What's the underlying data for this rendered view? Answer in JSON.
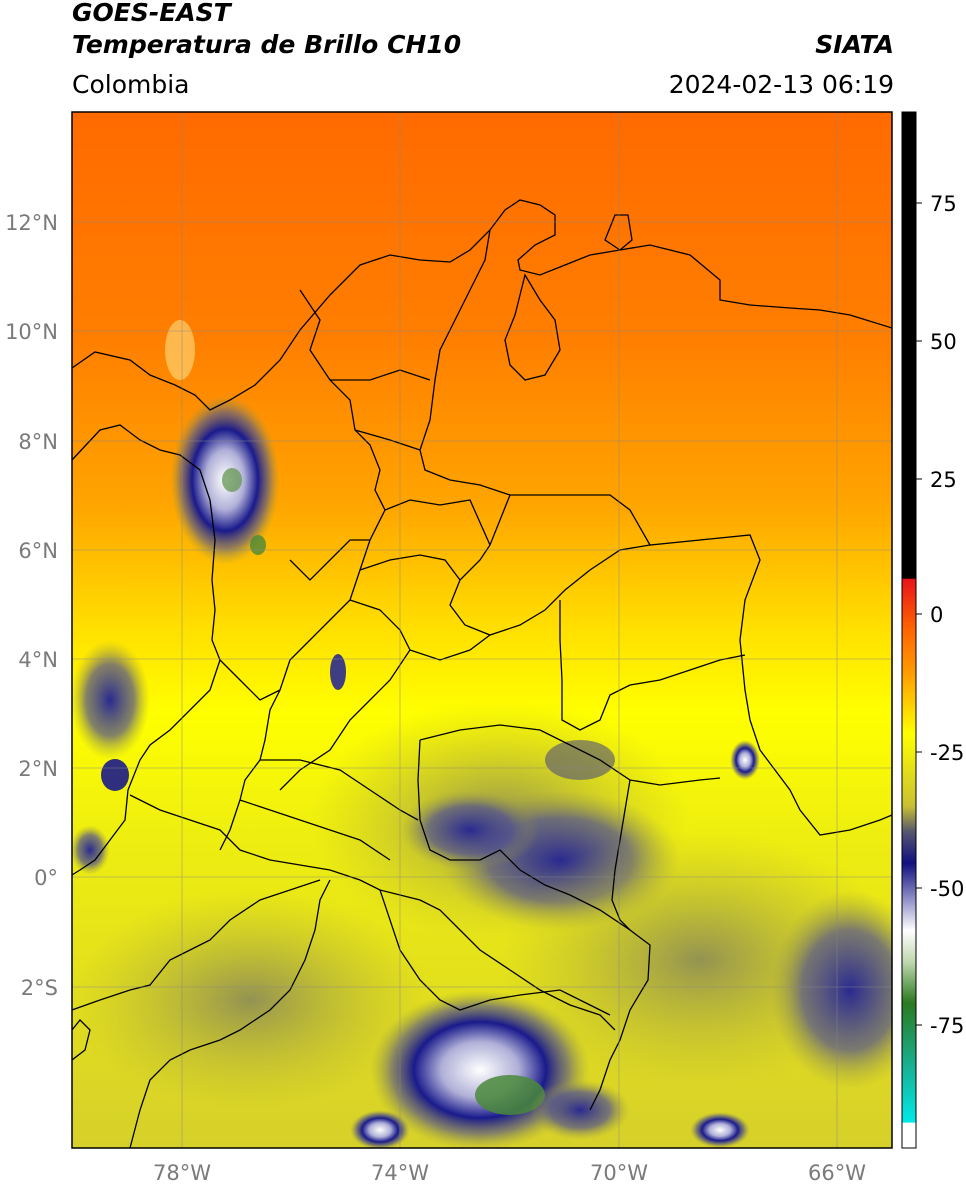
{
  "header": {
    "satellite": "GOES-EAST",
    "product": "Temperatura de Brillo CH10",
    "brand": "SIATA",
    "region": "Colombia",
    "timestamp": "2024-02-13 06:19"
  },
  "map": {
    "lat_ticks": [
      "12°N",
      "10°N",
      "8°N",
      "6°N",
      "4°N",
      "2°N",
      "0°",
      "2°S"
    ],
    "lon_ticks": [
      "78°W",
      "74°W",
      "70°W",
      "66°W"
    ],
    "lat_range": [
      -5,
      14
    ],
    "lon_range": [
      -80,
      -65
    ]
  },
  "colorbar": {
    "ticks": [
      "75",
      "50",
      "25",
      "0",
      "-25",
      "-50",
      "-75"
    ],
    "range": [
      -95,
      90
    ],
    "colors": [
      "#000000",
      "#e8141a",
      "#ff8c00",
      "#ffff00",
      "#c8c032",
      "#444470",
      "#1a1a8c",
      "#ffffff",
      "#3a7a30",
      "#00e0e0"
    ]
  }
}
